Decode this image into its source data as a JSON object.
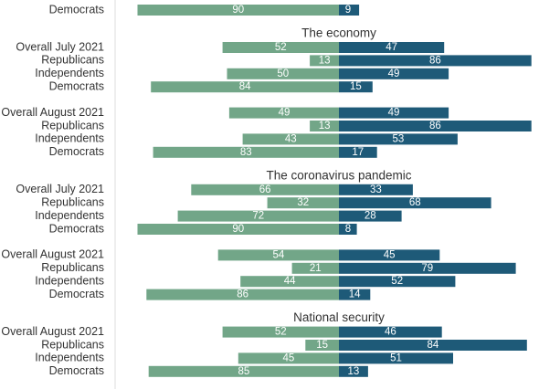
{
  "colors": {
    "disapprove": "#72a688",
    "approve": "#1e5a78",
    "axis_line": "#dddddd",
    "text": "#333333"
  },
  "chart_data": {
    "type": "bar",
    "orientation": "horizontal",
    "layout": "diverging",
    "title": "",
    "xlabel": "",
    "ylabel": "",
    "xlim": [
      -100,
      100
    ],
    "grid": false,
    "legend": "none",
    "series_order": [
      "left",
      "right"
    ],
    "sections": [
      {
        "title": "",
        "groups": [
          {
            "rows": [
              {
                "label": "Democrats",
                "left": 90,
                "right": 9
              }
            ]
          }
        ]
      },
      {
        "title": "The economy",
        "groups": [
          {
            "rows": [
              {
                "label": "Overall July 2021",
                "left": 52,
                "right": 47
              },
              {
                "label": "Republicans",
                "left": 13,
                "right": 86
              },
              {
                "label": "Independents",
                "left": 50,
                "right": 49
              },
              {
                "label": "Democrats",
                "left": 84,
                "right": 15
              }
            ]
          },
          {
            "rows": [
              {
                "label": "Overall August 2021",
                "left": 49,
                "right": 49
              },
              {
                "label": "Republicans",
                "left": 13,
                "right": 86
              },
              {
                "label": "Independents",
                "left": 43,
                "right": 53
              },
              {
                "label": "Democrats",
                "left": 83,
                "right": 17
              }
            ]
          }
        ]
      },
      {
        "title": "The coronavirus pandemic",
        "groups": [
          {
            "rows": [
              {
                "label": "Overall July 2021",
                "left": 66,
                "right": 33
              },
              {
                "label": "Republicans",
                "left": 32,
                "right": 68
              },
              {
                "label": "Independents",
                "left": 72,
                "right": 28
              },
              {
                "label": "Democrats",
                "left": 90,
                "right": 8
              }
            ]
          },
          {
            "rows": [
              {
                "label": "Overall August 2021",
                "left": 54,
                "right": 45
              },
              {
                "label": "Republicans",
                "left": 21,
                "right": 79
              },
              {
                "label": "Independents",
                "left": 44,
                "right": 52
              },
              {
                "label": "Democrats",
                "left": 86,
                "right": 14
              }
            ]
          }
        ]
      },
      {
        "title": "National security",
        "groups": [
          {
            "rows": [
              {
                "label": "Overall August 2021",
                "left": 52,
                "right": 46
              },
              {
                "label": "Republicans",
                "left": 15,
                "right": 84
              },
              {
                "label": "Independents",
                "left": 45,
                "right": 51
              },
              {
                "label": "Democrats",
                "left": 85,
                "right": 13
              }
            ]
          }
        ]
      }
    ]
  }
}
